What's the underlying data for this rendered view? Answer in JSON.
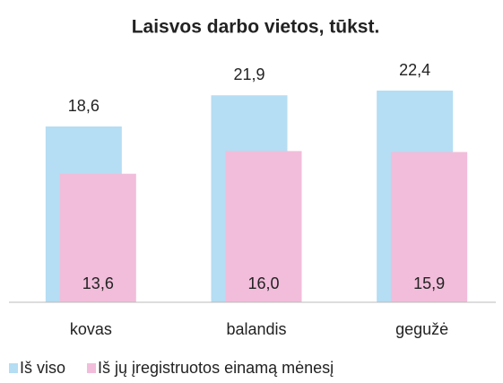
{
  "chart_data": {
    "type": "bar",
    "title": "Laisvos darbo vietos, tūkst.",
    "categories": [
      "kovas",
      "balandis",
      "gegužė"
    ],
    "series": [
      {
        "name": "Iš viso",
        "color": "#b5ddf3",
        "values": [
          18.6,
          21.9,
          22.4
        ],
        "value_labels": [
          "18,6",
          "21,9",
          "22,4"
        ]
      },
      {
        "name": "Iš jų įregistruotos einamą mėnesį",
        "color": "#f1bdda",
        "values": [
          13.6,
          16.0,
          15.9
        ],
        "value_labels": [
          "13,6",
          "16,0",
          "15,9"
        ]
      }
    ],
    "legend": "bottom"
  }
}
